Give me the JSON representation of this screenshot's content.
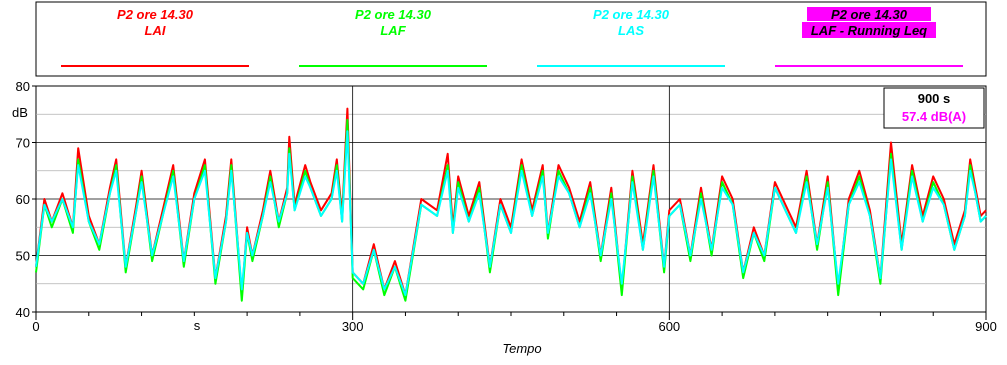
{
  "legend": [
    {
      "line1": "P2 ore 14.30",
      "line2": "LAI",
      "color": "#ff0000",
      "text_color": "#ff0000",
      "highlight": null
    },
    {
      "line1": "P2 ore 14.30",
      "line2": "LAF",
      "color": "#00ff00",
      "text_color": "#00ff00",
      "highlight": null
    },
    {
      "line1": "P2 ore 14.30",
      "line2": "LAS",
      "color": "#00ffff",
      "text_color": "#00ffff",
      "highlight": null
    },
    {
      "line1": "P2 ore 14.30",
      "line2": "LAF - Running Leq",
      "color": "#ff00ff",
      "text_color": "#000000",
      "highlight": "#ff00ff"
    }
  ],
  "info_box": {
    "time": "900 s",
    "leq": "57.4 dB(A)",
    "leq_color": "#ff00ff"
  },
  "chart_data": {
    "type": "line",
    "xlabel": "Tempo",
    "x_unit_label": "s",
    "ylabel": "dB",
    "xlim": [
      0,
      900
    ],
    "ylim": [
      40,
      80
    ],
    "x_ticks": [
      0,
      300,
      600,
      900
    ],
    "y_ticks": [
      40,
      50,
      60,
      70,
      80
    ],
    "grid": true,
    "legend_position": "top",
    "series": [
      {
        "name": "LAI",
        "color": "#ff0000",
        "x": [
          0,
          8,
          15,
          25,
          35,
          40,
          50,
          60,
          70,
          76,
          85,
          95,
          100,
          110,
          120,
          130,
          140,
          150,
          160,
          170,
          180,
          185,
          195,
          200,
          205,
          215,
          222,
          230,
          238,
          240,
          245,
          255,
          260,
          270,
          280,
          285,
          290,
          295,
          300,
          310,
          320,
          330,
          340,
          350,
          365,
          380,
          390,
          395,
          400,
          410,
          420,
          430,
          440,
          450,
          460,
          470,
          480,
          485,
          495,
          505,
          515,
          525,
          535,
          545,
          555,
          565,
          575,
          585,
          595,
          600,
          610,
          620,
          630,
          640,
          650,
          660,
          670,
          680,
          690,
          700,
          710,
          720,
          730,
          740,
          750,
          760,
          770,
          780,
          790,
          800,
          810,
          820,
          830,
          840,
          850,
          860,
          870,
          880,
          885,
          890,
          895,
          900
        ],
        "y": [
          48,
          60,
          56,
          61,
          55,
          69,
          57,
          52,
          62,
          67,
          48,
          59,
          65,
          50,
          58,
          66,
          49,
          61,
          67,
          46,
          57,
          67,
          43,
          55,
          50,
          58,
          65,
          56,
          62,
          71,
          59,
          66,
          63,
          58,
          61,
          67,
          57,
          76,
          47,
          45,
          52,
          44,
          49,
          43,
          60,
          58,
          68,
          55,
          64,
          57,
          63,
          48,
          60,
          55,
          67,
          58,
          66,
          54,
          66,
          62,
          56,
          63,
          50,
          62,
          44,
          65,
          52,
          66,
          48,
          58,
          60,
          50,
          62,
          51,
          64,
          60,
          47,
          55,
          50,
          63,
          59,
          55,
          65,
          52,
          64,
          44,
          60,
          65,
          58,
          46,
          70,
          52,
          66,
          57,
          64,
          60,
          52,
          58,
          67,
          62,
          57,
          58
        ]
      },
      {
        "name": "LAF",
        "color": "#00ff00",
        "x": [
          0,
          8,
          15,
          25,
          35,
          40,
          50,
          60,
          70,
          76,
          85,
          95,
          100,
          110,
          120,
          130,
          140,
          150,
          160,
          170,
          180,
          185,
          195,
          200,
          205,
          215,
          222,
          230,
          238,
          240,
          245,
          255,
          260,
          270,
          280,
          285,
          290,
          295,
          300,
          310,
          320,
          330,
          340,
          350,
          365,
          380,
          390,
          395,
          400,
          410,
          420,
          430,
          440,
          450,
          460,
          470,
          480,
          485,
          495,
          505,
          515,
          525,
          535,
          545,
          555,
          565,
          575,
          585,
          595,
          600,
          610,
          620,
          630,
          640,
          650,
          660,
          670,
          680,
          690,
          700,
          710,
          720,
          730,
          740,
          750,
          760,
          770,
          780,
          790,
          800,
          810,
          820,
          830,
          840,
          850,
          860,
          870,
          880,
          885,
          890,
          895,
          900
        ],
        "y": [
          47,
          59,
          55,
          60,
          54,
          67,
          56,
          51,
          61,
          66,
          47,
          58,
          64,
          49,
          57,
          65,
          48,
          60,
          66,
          45,
          56,
          66,
          42,
          54,
          49,
          57,
          64,
          55,
          61,
          69,
          58,
          65,
          62,
          57,
          60,
          66,
          56,
          74,
          46,
          44,
          51,
          43,
          48,
          42,
          59,
          57,
          66,
          54,
          63,
          56,
          62,
          47,
          59,
          54,
          66,
          57,
          65,
          53,
          65,
          61,
          55,
          62,
          49,
          61,
          43,
          64,
          51,
          65,
          47,
          57,
          59,
          49,
          61,
          50,
          63,
          59,
          46,
          54,
          49,
          62,
          58,
          54,
          64,
          51,
          63,
          43,
          59,
          64,
          57,
          45,
          68,
          51,
          65,
          56,
          63,
          59,
          51,
          57,
          66,
          61,
          56,
          57
        ]
      },
      {
        "name": "LAS",
        "color": "#00ffff",
        "x": [
          0,
          8,
          15,
          25,
          35,
          40,
          50,
          60,
          70,
          76,
          85,
          95,
          100,
          110,
          120,
          130,
          140,
          150,
          160,
          170,
          180,
          185,
          195,
          200,
          205,
          215,
          222,
          230,
          238,
          240,
          245,
          255,
          260,
          270,
          280,
          285,
          290,
          295,
          300,
          310,
          320,
          330,
          340,
          350,
          365,
          380,
          390,
          395,
          400,
          410,
          420,
          430,
          440,
          450,
          460,
          470,
          480,
          485,
          495,
          505,
          515,
          525,
          535,
          545,
          555,
          565,
          575,
          585,
          595,
          600,
          610,
          620,
          630,
          640,
          650,
          660,
          670,
          680,
          690,
          700,
          710,
          720,
          730,
          740,
          750,
          760,
          770,
          780,
          790,
          800,
          810,
          820,
          830,
          840,
          850,
          860,
          870,
          880,
          885,
          890,
          895,
          900
        ],
        "y": [
          48,
          59,
          56,
          60,
          55,
          66,
          56,
          52,
          61,
          65,
          48,
          58,
          63,
          50,
          57,
          64,
          49,
          60,
          65,
          46,
          56,
          65,
          44,
          54,
          50,
          57,
          63,
          56,
          61,
          68,
          58,
          64,
          62,
          57,
          60,
          65,
          56,
          72,
          47,
          45,
          51,
          44,
          48,
          43,
          59,
          57,
          65,
          54,
          62,
          56,
          61,
          48,
          59,
          54,
          65,
          57,
          64,
          54,
          64,
          61,
          55,
          61,
          50,
          60,
          45,
          63,
          51,
          64,
          48,
          57,
          59,
          50,
          60,
          51,
          62,
          59,
          47,
          54,
          50,
          62,
          58,
          54,
          63,
          52,
          62,
          45,
          59,
          63,
          57,
          46,
          67,
          51,
          64,
          56,
          62,
          59,
          51,
          57,
          65,
          61,
          56,
          57
        ]
      }
    ]
  }
}
